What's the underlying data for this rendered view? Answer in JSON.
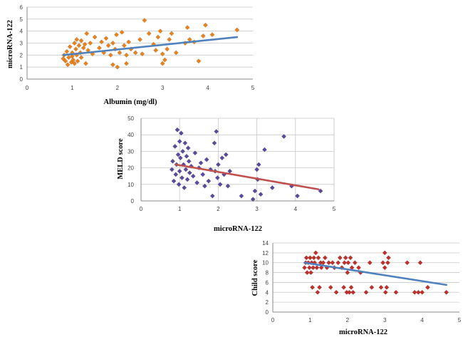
{
  "chart_data": [
    {
      "type": "scatter",
      "xlabel": "Albumin (mg/dl)",
      "ylabel": "microRNA-122",
      "xlim": [
        0,
        5
      ],
      "ylim": [
        0,
        6
      ],
      "xticks": [
        "0",
        "1",
        "2",
        "3",
        "4",
        "5"
      ],
      "yticks": [
        "0",
        "1",
        "2",
        "3",
        "4",
        "5",
        "6"
      ],
      "grid": "horizontal",
      "marker_color": "#E8821E",
      "trendline_color": "#4F81BD",
      "points": [
        [
          0.8,
          1.7
        ],
        [
          0.82,
          2.0
        ],
        [
          0.85,
          1.5
        ],
        [
          0.88,
          2.3
        ],
        [
          0.9,
          1.2
        ],
        [
          0.92,
          1.8
        ],
        [
          0.95,
          2.7
        ],
        [
          0.98,
          1.4
        ],
        [
          1.0,
          2.2
        ],
        [
          1.0,
          1.9
        ],
        [
          1.02,
          1.6
        ],
        [
          1.05,
          3.0
        ],
        [
          1.05,
          1.3
        ],
        [
          1.08,
          2.5
        ],
        [
          1.1,
          3.3
        ],
        [
          1.1,
          2.0
        ],
        [
          1.12,
          1.5
        ],
        [
          1.15,
          2.8
        ],
        [
          1.18,
          2.2
        ],
        [
          1.2,
          3.2
        ],
        [
          1.2,
          1.8
        ],
        [
          1.25,
          2.6
        ],
        [
          1.28,
          2.9
        ],
        [
          1.3,
          1.3
        ],
        [
          1.32,
          3.8
        ],
        [
          1.35,
          2.4
        ],
        [
          1.4,
          3.0
        ],
        [
          1.45,
          2.1
        ],
        [
          1.5,
          3.5
        ],
        [
          1.6,
          2.6
        ],
        [
          1.65,
          3.1
        ],
        [
          1.7,
          2.2
        ],
        [
          1.75,
          3.4
        ],
        [
          1.8,
          2.8
        ],
        [
          1.85,
          2.0
        ],
        [
          1.9,
          1.2
        ],
        [
          1.9,
          3.0
        ],
        [
          1.95,
          2.5
        ],
        [
          1.98,
          3.7
        ],
        [
          2.0,
          1.0
        ],
        [
          2.05,
          2.2
        ],
        [
          2.1,
          3.9
        ],
        [
          2.15,
          2.8
        ],
        [
          2.2,
          1.3
        ],
        [
          2.2,
          2.0
        ],
        [
          2.25,
          3.1
        ],
        [
          2.3,
          2.5
        ],
        [
          2.4,
          2.2
        ],
        [
          2.5,
          3.3
        ],
        [
          2.55,
          2.1
        ],
        [
          2.6,
          4.9
        ],
        [
          2.7,
          3.8
        ],
        [
          2.8,
          2.9
        ],
        [
          2.85,
          2.4
        ],
        [
          2.9,
          3.5
        ],
        [
          2.95,
          4.0
        ],
        [
          3.0,
          1.3
        ],
        [
          3.0,
          2.1
        ],
        [
          3.05,
          1.6
        ],
        [
          3.1,
          2.5
        ],
        [
          3.15,
          3.3
        ],
        [
          3.2,
          3.8
        ],
        [
          3.3,
          2.2
        ],
        [
          3.5,
          3.0
        ],
        [
          3.55,
          4.3
        ],
        [
          3.6,
          3.3
        ],
        [
          3.7,
          3.1
        ],
        [
          3.8,
          1.5
        ],
        [
          3.9,
          3.6
        ],
        [
          3.95,
          4.5
        ],
        [
          4.1,
          3.7
        ],
        [
          4.65,
          4.1
        ]
      ],
      "trendline": [
        [
          0.8,
          2.0
        ],
        [
          4.65,
          3.5
        ]
      ]
    },
    {
      "type": "scatter",
      "xlabel": "microRNA-122",
      "ylabel": "MELD score",
      "xlim": [
        0,
        5
      ],
      "ylim": [
        0,
        50
      ],
      "xticks": [
        "0",
        "1",
        "2",
        "3",
        "4",
        "5"
      ],
      "yticks": [
        "0",
        "10",
        "20",
        "30",
        "40",
        "50"
      ],
      "grid": "both",
      "marker_color": "#5B4A9B",
      "trendline_color": "#C0504D",
      "points": [
        [
          0.8,
          19
        ],
        [
          0.82,
          24
        ],
        [
          0.85,
          12
        ],
        [
          0.88,
          33
        ],
        [
          0.9,
          16
        ],
        [
          0.92,
          22
        ],
        [
          0.94,
          43
        ],
        [
          0.96,
          28
        ],
        [
          0.98,
          10
        ],
        [
          1.0,
          36
        ],
        [
          1.0,
          18
        ],
        [
          1.02,
          26
        ],
        [
          1.04,
          41
        ],
        [
          1.06,
          14
        ],
        [
          1.08,
          30
        ],
        [
          1.1,
          22
        ],
        [
          1.12,
          8
        ],
        [
          1.14,
          35
        ],
        [
          1.16,
          19
        ],
        [
          1.18,
          27
        ],
        [
          1.2,
          13
        ],
        [
          1.22,
          32
        ],
        [
          1.24,
          24
        ],
        [
          1.26,
          17
        ],
        [
          1.3,
          21
        ],
        [
          1.35,
          15
        ],
        [
          1.4,
          29
        ],
        [
          1.45,
          11
        ],
        [
          1.5,
          20
        ],
        [
          1.55,
          23
        ],
        [
          1.6,
          16
        ],
        [
          1.65,
          9
        ],
        [
          1.7,
          25
        ],
        [
          1.75,
          12
        ],
        [
          1.8,
          19
        ],
        [
          1.85,
          3
        ],
        [
          1.9,
          35
        ],
        [
          1.92,
          18
        ],
        [
          1.95,
          42
        ],
        [
          1.98,
          14
        ],
        [
          2.0,
          22
        ],
        [
          2.05,
          10
        ],
        [
          2.1,
          26
        ],
        [
          2.15,
          16
        ],
        [
          2.2,
          28
        ],
        [
          2.25,
          9
        ],
        [
          2.3,
          18
        ],
        [
          2.6,
          3
        ],
        [
          2.9,
          1
        ],
        [
          2.95,
          6
        ],
        [
          3.0,
          19
        ],
        [
          3.02,
          13
        ],
        [
          3.05,
          22
        ],
        [
          3.1,
          4
        ],
        [
          3.2,
          31
        ],
        [
          3.4,
          8
        ],
        [
          3.7,
          39
        ],
        [
          3.9,
          9
        ],
        [
          4.05,
          3
        ],
        [
          4.65,
          6
        ]
      ],
      "trendline": [
        [
          0.9,
          22
        ],
        [
          4.6,
          7
        ]
      ]
    },
    {
      "type": "scatter",
      "xlabel": "microRNA-122",
      "ylabel": "Child score",
      "xlim": [
        0,
        5
      ],
      "ylim": [
        0,
        14
      ],
      "xticks": [
        "0",
        "1",
        "2",
        "3",
        "4",
        "5"
      ],
      "yticks": [
        "0",
        "2",
        "4",
        "6",
        "8",
        "10",
        "12",
        "14"
      ],
      "grid": "horizontal",
      "marker_color": "#C0302B",
      "trendline_color": "#4F81BD",
      "points": [
        [
          0.85,
          9
        ],
        [
          0.88,
          10
        ],
        [
          0.9,
          11
        ],
        [
          0.92,
          8
        ],
        [
          0.95,
          10
        ],
        [
          0.98,
          9
        ],
        [
          1.0,
          11
        ],
        [
          1.02,
          8
        ],
        [
          1.04,
          10
        ],
        [
          1.06,
          5
        ],
        [
          1.08,
          9
        ],
        [
          1.1,
          11
        ],
        [
          1.12,
          10
        ],
        [
          1.15,
          12
        ],
        [
          1.18,
          9
        ],
        [
          1.2,
          4
        ],
        [
          1.22,
          11
        ],
        [
          1.25,
          5
        ],
        [
          1.28,
          10
        ],
        [
          1.3,
          9
        ],
        [
          1.35,
          10
        ],
        [
          1.4,
          11
        ],
        [
          1.45,
          9
        ],
        [
          1.5,
          10
        ],
        [
          1.55,
          5
        ],
        [
          1.6,
          10
        ],
        [
          1.65,
          9
        ],
        [
          1.7,
          4
        ],
        [
          1.75,
          10
        ],
        [
          1.8,
          11
        ],
        [
          1.85,
          9
        ],
        [
          1.9,
          5
        ],
        [
          1.92,
          10
        ],
        [
          1.95,
          11
        ],
        [
          1.98,
          4
        ],
        [
          2.0,
          8
        ],
        [
          2.02,
          10
        ],
        [
          2.05,
          4
        ],
        [
          2.08,
          11
        ],
        [
          2.1,
          5
        ],
        [
          2.12,
          9
        ],
        [
          2.15,
          4
        ],
        [
          2.2,
          10
        ],
        [
          2.3,
          9
        ],
        [
          2.35,
          8
        ],
        [
          2.5,
          4
        ],
        [
          2.6,
          10
        ],
        [
          2.65,
          5
        ],
        [
          2.9,
          5
        ],
        [
          2.95,
          10
        ],
        [
          3.0,
          12
        ],
        [
          3.0,
          9
        ],
        [
          3.02,
          4
        ],
        [
          3.05,
          5
        ],
        [
          3.08,
          10
        ],
        [
          3.1,
          11
        ],
        [
          3.3,
          4
        ],
        [
          3.6,
          10
        ],
        [
          3.8,
          4
        ],
        [
          3.9,
          4
        ],
        [
          3.95,
          10
        ],
        [
          4.0,
          4
        ],
        [
          4.15,
          5
        ],
        [
          4.65,
          4
        ]
      ],
      "trendline": [
        [
          0.85,
          10
        ],
        [
          4.65,
          5.5
        ]
      ]
    }
  ]
}
